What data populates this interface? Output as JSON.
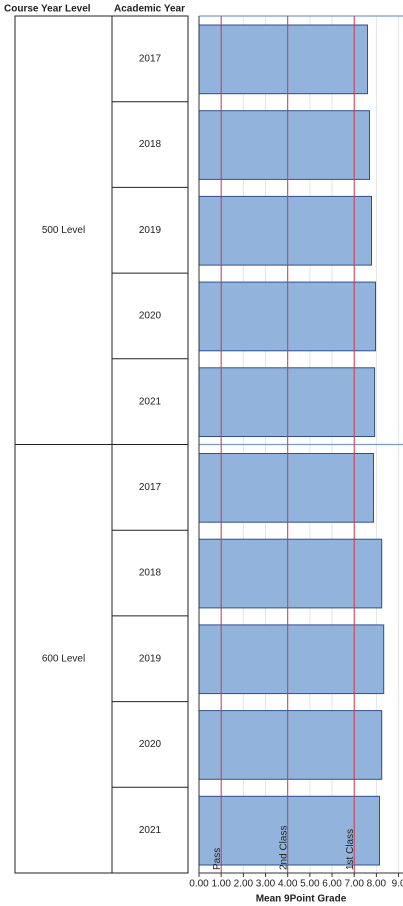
{
  "chart_data": {
    "type": "bar",
    "orientation": "horizontal",
    "group_label": "Course Year Level",
    "category_label": "Academic Year",
    "groups": [
      {
        "name": "500 Level",
        "categories": [
          "2017",
          "2018",
          "2019",
          "2020",
          "2021"
        ],
        "values": [
          7.6,
          7.69,
          7.78,
          7.96,
          7.92
        ]
      },
      {
        "name": "600 Level",
        "categories": [
          "2017",
          "2018",
          "2019",
          "2020",
          "2021"
        ],
        "values": [
          7.87,
          8.24,
          8.33,
          8.24,
          8.14
        ]
      }
    ],
    "color": "#92b4dc",
    "edge_color": "#2f4f8f",
    "xlabel": "Mean 9Point Grade",
    "xlim": [
      0,
      9.2
    ],
    "xticks": [
      {
        "value": 0,
        "label": "0.00"
      },
      {
        "value": 1,
        "label": "1.00"
      },
      {
        "value": 2,
        "label": "2.00"
      },
      {
        "value": 3,
        "label": "3.00"
      },
      {
        "value": 4,
        "label": "4.00"
      },
      {
        "value": 5,
        "label": "5.00"
      },
      {
        "value": 6,
        "label": "6.00"
      },
      {
        "value": 7,
        "label": "7.00"
      },
      {
        "value": 8,
        "label": "8.00"
      },
      {
        "value": 9,
        "label": "9.0"
      }
    ],
    "grid": true,
    "reference_lines": [
      {
        "value": 1,
        "label": "Pass"
      },
      {
        "value": 4,
        "label": "2nd Class"
      },
      {
        "value": 7,
        "label": "1st Class"
      }
    ],
    "reference_color": "#d0384a"
  }
}
